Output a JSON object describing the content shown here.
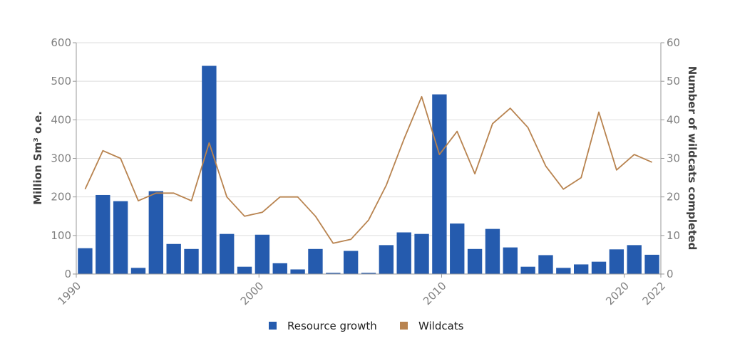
{
  "chart_data": {
    "type": "bar",
    "title": "",
    "years": [
      1990,
      1991,
      1992,
      1993,
      1994,
      1995,
      1996,
      1997,
      1998,
      1999,
      2000,
      2001,
      2002,
      2003,
      2004,
      2005,
      2006,
      2007,
      2008,
      2009,
      2010,
      2011,
      2012,
      2013,
      2014,
      2015,
      2016,
      2017,
      2018,
      2019,
      2020,
      2021,
      2022
    ],
    "x_tick_labels": [
      "1990",
      "2000",
      "2010",
      "2020",
      "2022"
    ],
    "series": [
      {
        "name": "Resource growth",
        "type": "bar",
        "axis": "left",
        "color": "#255BAE",
        "values": [
          67,
          205,
          189,
          16,
          215,
          78,
          65,
          540,
          104,
          19,
          102,
          28,
          12,
          65,
          3,
          60,
          3,
          75,
          108,
          104,
          466,
          131,
          65,
          117,
          69,
          19,
          49,
          16,
          25,
          32,
          64,
          75,
          50
        ]
      },
      {
        "name": "Wildcats",
        "type": "line",
        "axis": "right",
        "color": "#B8834F",
        "values": [
          22,
          32,
          30,
          19,
          21,
          21,
          19,
          34,
          20,
          15,
          16,
          20,
          20,
          15,
          8,
          9,
          14,
          23,
          35,
          46,
          31,
          37,
          26,
          39,
          43,
          38,
          28,
          22,
          25,
          42,
          27,
          31,
          29
        ]
      }
    ],
    "y_left": {
      "label": "Million Sm³ o.e.",
      "range": [
        0,
        600
      ],
      "ticks": [
        "0",
        "100",
        "200",
        "300",
        "400",
        "500",
        "600"
      ]
    },
    "y_right": {
      "label": "Number of wildcats completed",
      "range": [
        0,
        60
      ],
      "ticks": [
        "0",
        "10",
        "20",
        "30",
        "40",
        "50",
        "60"
      ]
    },
    "grid": true,
    "legend_position": "bottom"
  }
}
